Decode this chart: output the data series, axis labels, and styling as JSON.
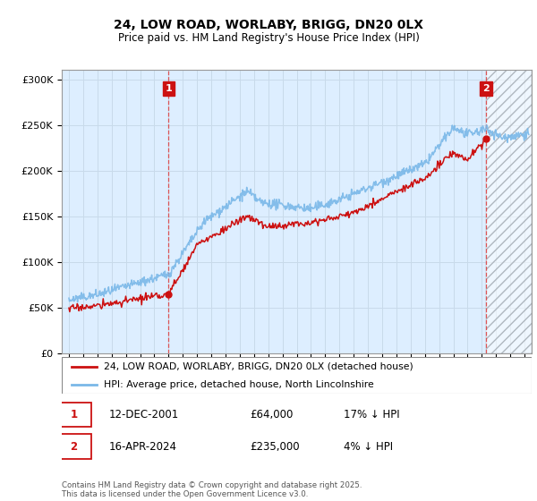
{
  "title": "24, LOW ROAD, WORLABY, BRIGG, DN20 0LX",
  "subtitle": "Price paid vs. HM Land Registry's House Price Index (HPI)",
  "ylabel_ticks": [
    "£0",
    "£50K",
    "£100K",
    "£150K",
    "£200K",
    "£250K",
    "£300K"
  ],
  "ytick_values": [
    0,
    50000,
    100000,
    150000,
    200000,
    250000,
    300000
  ],
  "ylim": [
    0,
    310000
  ],
  "xlim_start": 1994.5,
  "xlim_end": 2027.5,
  "xticks": [
    1995,
    1996,
    1997,
    1998,
    1999,
    2000,
    2001,
    2002,
    2003,
    2004,
    2005,
    2006,
    2007,
    2008,
    2009,
    2010,
    2011,
    2012,
    2013,
    2014,
    2015,
    2016,
    2017,
    2018,
    2019,
    2020,
    2021,
    2022,
    2023,
    2024,
    2025,
    2026,
    2027
  ],
  "purchase1_date": 2002.0,
  "purchase1_value": 64000,
  "purchase1_label": "1",
  "purchase2_date": 2024.3,
  "purchase2_value": 235000,
  "purchase2_label": "2",
  "hpi_color": "#7ab8e8",
  "price_color": "#cc1111",
  "vline_color": "#dd4444",
  "annotation_box_color": "#cc1111",
  "grid_color": "#c8daea",
  "bg_color": "#ddeeff",
  "legend_entry1": "24, LOW ROAD, WORLABY, BRIGG, DN20 0LX (detached house)",
  "legend_entry2": "HPI: Average price, detached house, North Lincolnshire",
  "annotation1_date": "12-DEC-2001",
  "annotation1_price": "£64,000",
  "annotation1_hpi": "17% ↓ HPI",
  "annotation2_date": "16-APR-2024",
  "annotation2_price": "£235,000",
  "annotation2_hpi": "4% ↓ HPI",
  "footnote": "Contains HM Land Registry data © Crown copyright and database right 2025.\nThis data is licensed under the Open Government Licence v3.0.",
  "hatch_start": 2024.3,
  "hatch_end": 2027.5
}
